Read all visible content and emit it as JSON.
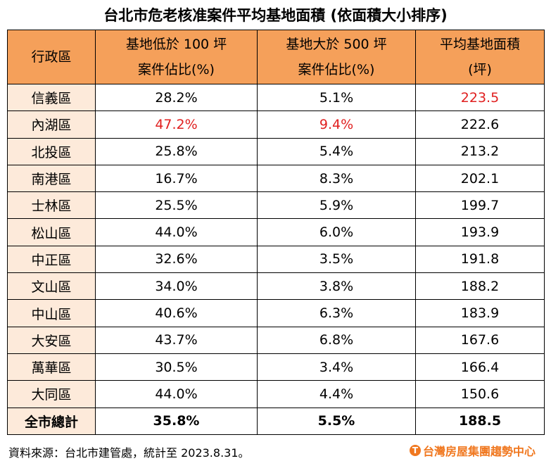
{
  "title": "台北市危老核准案件平均基地面積 (依面積大小排序)",
  "headers": {
    "district": "行政區",
    "under100_line1": "基地低於 100 坪",
    "under100_line2": "案件佔比(%)",
    "over500_line1": "基地大於 500 坪",
    "over500_line2": "案件佔比(%)",
    "avg_line1": "平均基地面積",
    "avg_line2": "(坪)"
  },
  "rows": [
    {
      "district": "信義區",
      "under100": "28.2%",
      "over500": "5.1%",
      "avg": "223.5",
      "highlight": "avg"
    },
    {
      "district": "內湖區",
      "under100": "47.2%",
      "over500": "9.4%",
      "avg": "222.6",
      "highlight": "under100,over500"
    },
    {
      "district": "北投區",
      "under100": "25.8%",
      "over500": "5.4%",
      "avg": "213.2"
    },
    {
      "district": "南港區",
      "under100": "16.7%",
      "over500": "8.3%",
      "avg": "202.1"
    },
    {
      "district": "士林區",
      "under100": "25.5%",
      "over500": "5.9%",
      "avg": "199.7"
    },
    {
      "district": "松山區",
      "under100": "44.0%",
      "over500": "6.0%",
      "avg": "193.9"
    },
    {
      "district": "中正區",
      "under100": "32.6%",
      "over500": "3.5%",
      "avg": "191.8"
    },
    {
      "district": "文山區",
      "under100": "34.0%",
      "over500": "3.8%",
      "avg": "188.2"
    },
    {
      "district": "中山區",
      "under100": "40.6%",
      "over500": "6.3%",
      "avg": "183.9"
    },
    {
      "district": "大安區",
      "under100": "43.7%",
      "over500": "6.8%",
      "avg": "167.6"
    },
    {
      "district": "萬華區",
      "under100": "30.5%",
      "over500": "3.4%",
      "avg": "166.4"
    },
    {
      "district": "大同區",
      "under100": "44.0%",
      "over500": "4.4%",
      "avg": "150.6"
    }
  ],
  "total": {
    "district": "全市總計",
    "under100": "35.8%",
    "over500": "5.5%",
    "avg": "188.5"
  },
  "source": "資料來源：台北市建管處，統計至 2023.8.31。",
  "logo": {
    "text": "台灣房屋集團趨勢中心",
    "icon": "taiwan-realty-logo-icon",
    "color": "#F07820"
  },
  "colors": {
    "header": "#F5A05A",
    "district_column": "#FDEADA",
    "highlight": "#E02020"
  }
}
